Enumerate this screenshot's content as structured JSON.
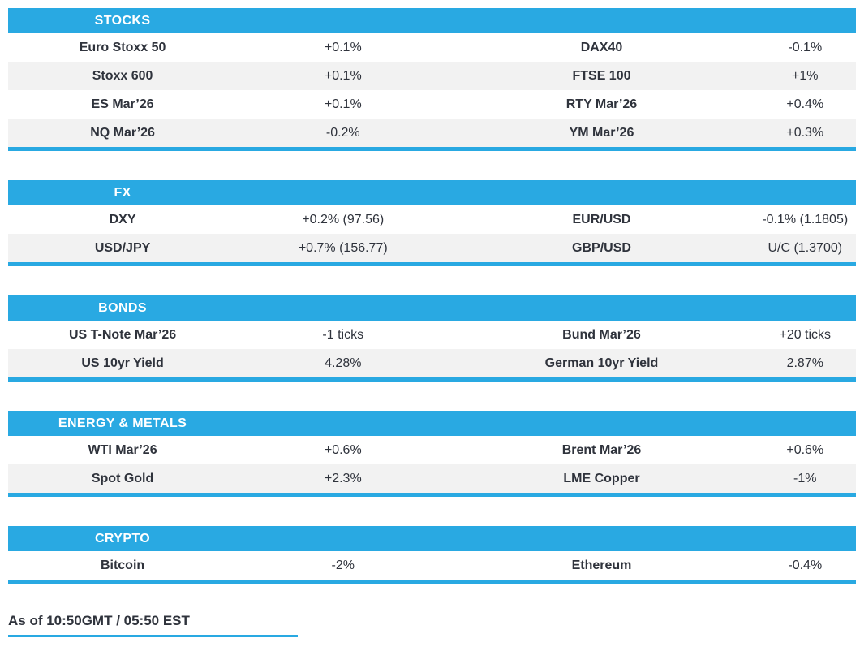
{
  "colors": {
    "accent_blue": "#29A9E2",
    "row_alt_gray": "#F2F2F2",
    "text_dark": "#2F333C",
    "header_text": "#FFFFFF"
  },
  "sections": [
    {
      "title": "STOCKS",
      "rows": [
        {
          "left_name": "Euro Stoxx 50",
          "left_value": "+0.1%",
          "right_name": "DAX40",
          "right_value": "-0.1%"
        },
        {
          "left_name": "Stoxx 600",
          "left_value": "+0.1%",
          "right_name": "FTSE 100",
          "right_value": "+1%"
        },
        {
          "left_name": "ES Mar’26",
          "left_value": "+0.1%",
          "right_name": "RTY Mar’26",
          "right_value": "+0.4%"
        },
        {
          "left_name": "NQ Mar’26",
          "left_value": "-0.2%",
          "right_name": "YM Mar’26",
          "right_value": "+0.3%"
        }
      ]
    },
    {
      "title": "FX",
      "rows": [
        {
          "left_name": "DXY",
          "left_value": "+0.2% (97.56)",
          "right_name": "EUR/USD",
          "right_value": "-0.1% (1.1805)"
        },
        {
          "left_name": "USD/JPY",
          "left_value": "+0.7% (156.77)",
          "right_name": "GBP/USD",
          "right_value": "U/C (1.3700)"
        }
      ]
    },
    {
      "title": "BONDS",
      "rows": [
        {
          "left_name": "US T-Note Mar’26",
          "left_value": "-1 ticks",
          "right_name": "Bund Mar’26",
          "right_value": "+20 ticks"
        },
        {
          "left_name": "US 10yr Yield",
          "left_value": "4.28%",
          "right_name": "German 10yr Yield",
          "right_value": "2.87%"
        }
      ]
    },
    {
      "title": "ENERGY & METALS",
      "rows": [
        {
          "left_name": "WTI Mar’26",
          "left_value": "+0.6%",
          "right_name": "Brent Mar’26",
          "right_value": "+0.6%"
        },
        {
          "left_name": "Spot Gold",
          "left_value": "+2.3%",
          "right_name": "LME Copper",
          "right_value": "-1%"
        }
      ]
    },
    {
      "title": "CRYPTO",
      "rows": [
        {
          "left_name": "Bitcoin",
          "left_value": "-2%",
          "right_name": "Ethereum",
          "right_value": "-0.4%"
        }
      ]
    }
  ],
  "footer": {
    "as_of": "As of 10:50GMT / 05:50 EST"
  }
}
